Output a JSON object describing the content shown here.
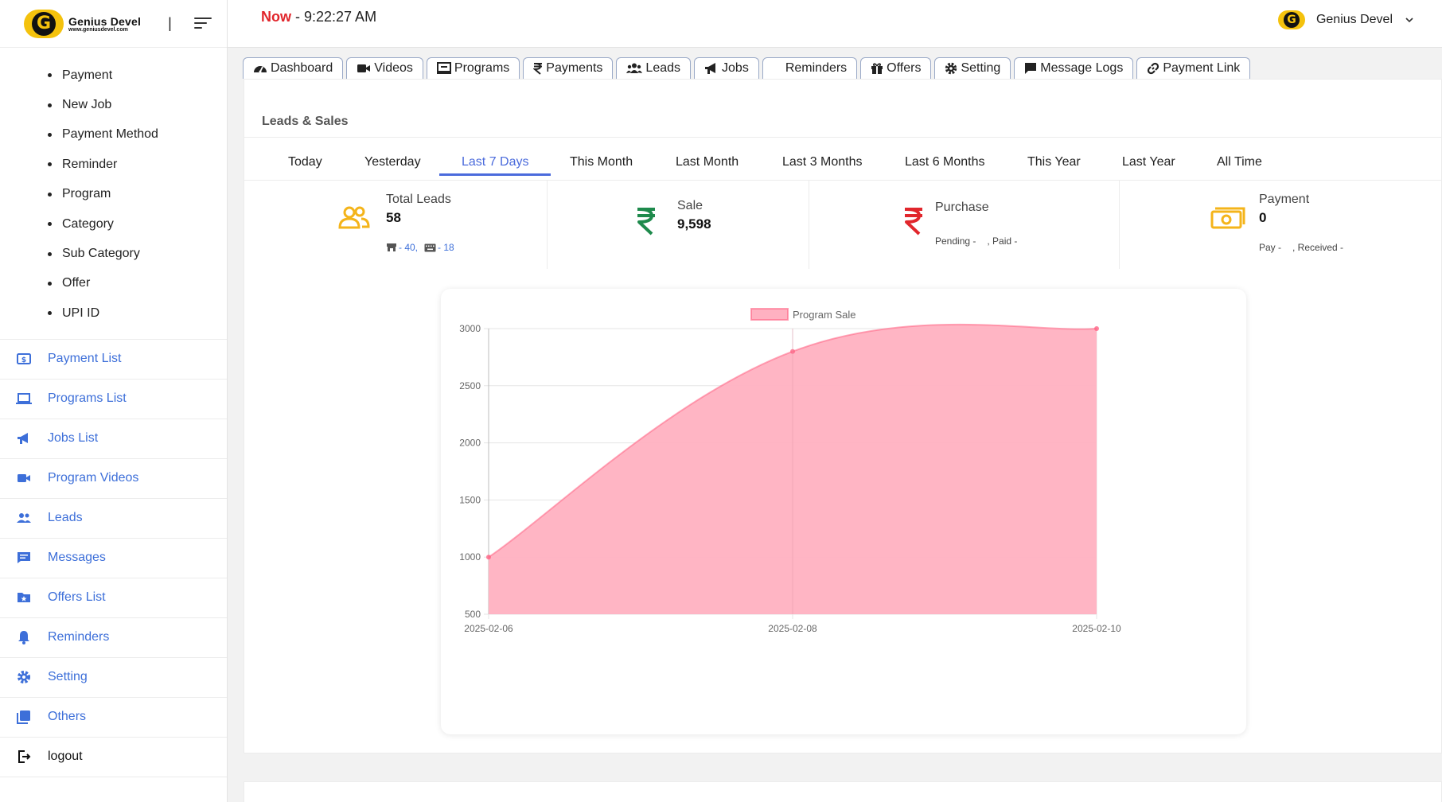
{
  "brand": {
    "name": "Genius Devel",
    "url": "www.geniusdevel.com",
    "divider": "|"
  },
  "header": {
    "now_label": "Now",
    "time": " - 9:22:27 AM",
    "user_name": "Genius Devel"
  },
  "sidebar": {
    "sub_items": [
      "Payment",
      "New Job",
      "Payment Method",
      "Reminder",
      "Program",
      "Category",
      "Sub Category",
      "Offer",
      "UPI ID"
    ],
    "nav_items": [
      {
        "label": "Payment List",
        "icon": "dollar-card-icon"
      },
      {
        "label": "Programs List",
        "icon": "laptop-icon"
      },
      {
        "label": "Jobs List",
        "icon": "megaphone-icon"
      },
      {
        "label": "Program Videos",
        "icon": "video-camera-icon"
      },
      {
        "label": "Leads",
        "icon": "people-icon"
      },
      {
        "label": "Messages",
        "icon": "message-icon"
      },
      {
        "label": "Offers List",
        "icon": "folder-star-icon"
      },
      {
        "label": "Reminders",
        "icon": "bell-icon"
      },
      {
        "label": "Setting",
        "icon": "gear-icon"
      },
      {
        "label": "Others",
        "icon": "stack-icon"
      },
      {
        "label": "logout",
        "icon": "logout-icon"
      }
    ]
  },
  "tabs": [
    {
      "label": "Dashboard",
      "icon": "dashboard-icon"
    },
    {
      "label": "Videos",
      "icon": "video-icon"
    },
    {
      "label": "Programs",
      "icon": "program-icon"
    },
    {
      "label": "Payments",
      "icon": "rupee-icon"
    },
    {
      "label": "Leads",
      "icon": "users-icon"
    },
    {
      "label": "Jobs",
      "icon": "bullhorn-icon"
    },
    {
      "label": "Reminders",
      "icon": ""
    },
    {
      "label": "Offers",
      "icon": "gift-icon"
    },
    {
      "label": "Setting",
      "icon": "cog-icon"
    },
    {
      "label": "Message Logs",
      "icon": "comment-icon"
    },
    {
      "label": "Payment Link",
      "icon": "link-icon"
    }
  ],
  "section": {
    "title": "Leads & Sales"
  },
  "ranges": [
    "Today",
    "Yesterday",
    "Last 7 Days",
    "This Month",
    "Last Month",
    "Last 3 Months",
    "Last 6 Months",
    "This Year",
    "Last Year",
    "All Time"
  ],
  "active_range": "Last 7 Days",
  "stats": {
    "leads": {
      "label": "Total Leads",
      "value": "58",
      "store_count": "- 40,",
      "keyboard_count": "- 18"
    },
    "sale": {
      "label": "Sale",
      "value": "9,598"
    },
    "purchase": {
      "label": "Purchase",
      "pending": "Pending -",
      "paid": ", Paid -"
    },
    "payment": {
      "label": "Payment",
      "value": "0",
      "pay": "Pay -",
      "received": ", Received -"
    }
  },
  "colors": {
    "accent": "#4b6bdc",
    "link": "#3d6fd9",
    "red": "#e1262c",
    "green": "#1e8a4c",
    "gold": "#f4b41a",
    "area_fill": "#ffb1c1",
    "area_line": "#ff6384"
  },
  "chart_data": {
    "type": "area",
    "x": [
      "2025-02-06",
      "2025-02-08",
      "2025-02-10"
    ],
    "series": [
      {
        "name": "Program Sale",
        "values": [
          1000,
          2800,
          3000
        ]
      }
    ],
    "ylim": [
      500,
      3000
    ],
    "yticks": [
      500,
      1000,
      1500,
      2000,
      2500,
      3000
    ],
    "legend": "top",
    "grid": true
  }
}
